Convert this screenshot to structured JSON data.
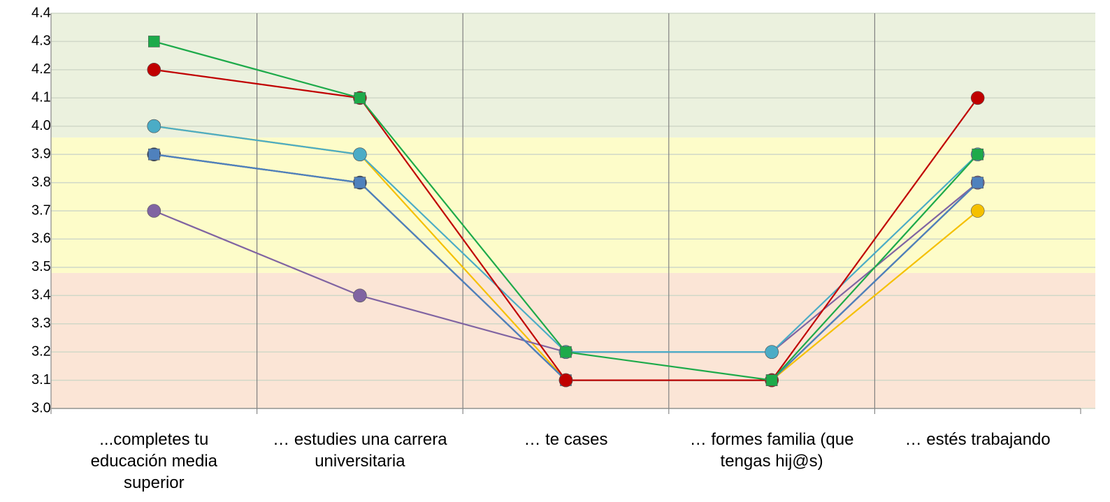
{
  "chart_data": {
    "type": "line",
    "categories": [
      "...completes tu educación media superior",
      "… estudies una carrera universitaria",
      "… te cases",
      "… formes familia (que tengas hij@s)",
      "… estés trabajando"
    ],
    "series": [
      {
        "color": "#f5c000",
        "marker": "circle",
        "values": [
          4.0,
          3.9,
          3.1,
          3.1,
          3.7
        ]
      },
      {
        "color": "#1f3864",
        "marker": "circle",
        "values": [
          3.9,
          3.8,
          3.1,
          3.1,
          3.8
        ]
      },
      {
        "color": "#8064a2",
        "marker": "circle",
        "values": [
          3.7,
          3.4,
          3.2,
          3.2,
          3.8
        ]
      },
      {
        "color": "#4bacc6",
        "marker": "circle",
        "values": [
          4.0,
          3.9,
          3.2,
          3.2,
          3.9
        ]
      },
      {
        "color": "#4f81bd",
        "marker": "square",
        "values": [
          3.9,
          3.8,
          3.1,
          3.1,
          3.8
        ]
      },
      {
        "color": "#c00000",
        "marker": "circle",
        "values": [
          4.2,
          4.1,
          3.1,
          3.1,
          4.1
        ]
      },
      {
        "color": "#1daa4a",
        "marker": "square",
        "values": [
          4.3,
          4.1,
          3.2,
          3.1,
          3.9
        ]
      }
    ],
    "ylim": [
      3.0,
      4.4
    ],
    "yticks": [
      {
        "value": 3.0,
        "label": "3.0"
      },
      3.1,
      3.2,
      3.3,
      3.4,
      3.5,
      3.6,
      3.7,
      3.8,
      3.9,
      {
        "value": 4.0,
        "label": "4.0"
      },
      4.1,
      4.2,
      4.3,
      4.4
    ],
    "bands": [
      {
        "from": 3.0,
        "to": 3.48,
        "color": "#fbe5d6"
      },
      {
        "from": 3.48,
        "to": 3.96,
        "color": "#fdfcc9"
      },
      {
        "from": 3.96,
        "to": 4.4,
        "color": "#ebf1de"
      }
    ],
    "grid": true
  }
}
